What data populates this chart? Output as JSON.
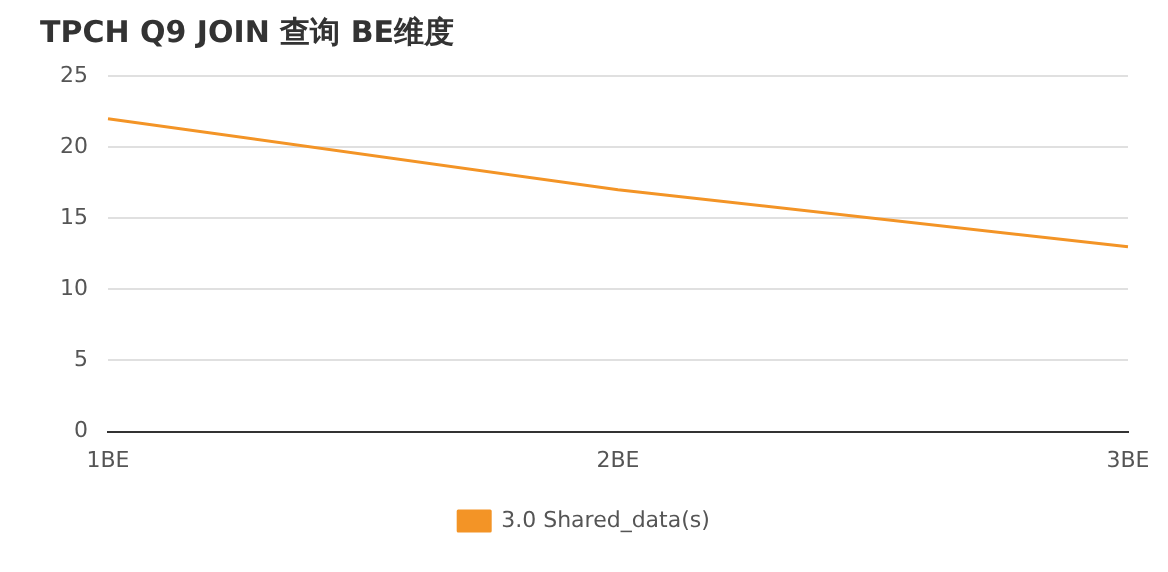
{
  "chart_data": {
    "type": "line",
    "title": "TPCH Q9 JOIN 查询 BE维度",
    "categories": [
      "1BE",
      "2BE",
      "3BE"
    ],
    "series": [
      {
        "name": "3.0 Shared_data(s)",
        "color": "#f39426",
        "values": [
          22,
          17,
          13
        ]
      }
    ],
    "ylim": [
      0,
      25
    ],
    "yticks": [
      0,
      5,
      10,
      15,
      20,
      25
    ],
    "grid": "y",
    "legend": "bottom",
    "marker": "none",
    "line_style": "solid"
  }
}
